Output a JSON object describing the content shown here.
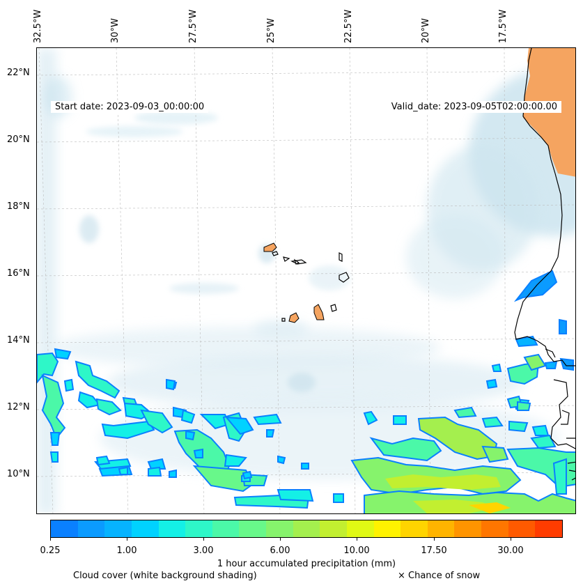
{
  "map": {
    "start_date": "Start date: 2023-09-03_00:00:00",
    "valid_date": "Valid_date: 2023-09-05T02:00:00.00",
    "longitude_labels": [
      "32.5°W",
      "30°W",
      "27.5°W",
      "25°W",
      "22.5°W",
      "20°W",
      "17.5°W"
    ],
    "latitude_labels": [
      "22°N",
      "20°N",
      "18°N",
      "16°N",
      "14°N",
      "12°N",
      "10°N"
    ],
    "colors": {
      "land": "#f5a460",
      "land_light": "#f7c898",
      "cloud": "#c9e2ee",
      "coastline": "#000000",
      "gridline": "#bbbbbb"
    }
  },
  "colorbar": {
    "colors": [
      "#0a80ff",
      "#0b9bff",
      "#06b3ff",
      "#00d2ff",
      "#14f0e6",
      "#2ef7c8",
      "#4bf8a8",
      "#68f88a",
      "#86f36c",
      "#a4ef4e",
      "#c2ef30",
      "#e0f914",
      "#fff200",
      "#ffd400",
      "#ffb400",
      "#ff9400",
      "#ff7600",
      "#ff5a00",
      "#ff3c00"
    ],
    "tick_labels": [
      "0.25",
      "1.00",
      "3.00",
      "6.00",
      "10.00",
      "17.50",
      "30.00"
    ],
    "title": "1 hour accumulated precipitation (mm)"
  },
  "legend": {
    "cloud_note": "Cloud cover (white background shading)",
    "snow_note": "× Chance of snow"
  }
}
